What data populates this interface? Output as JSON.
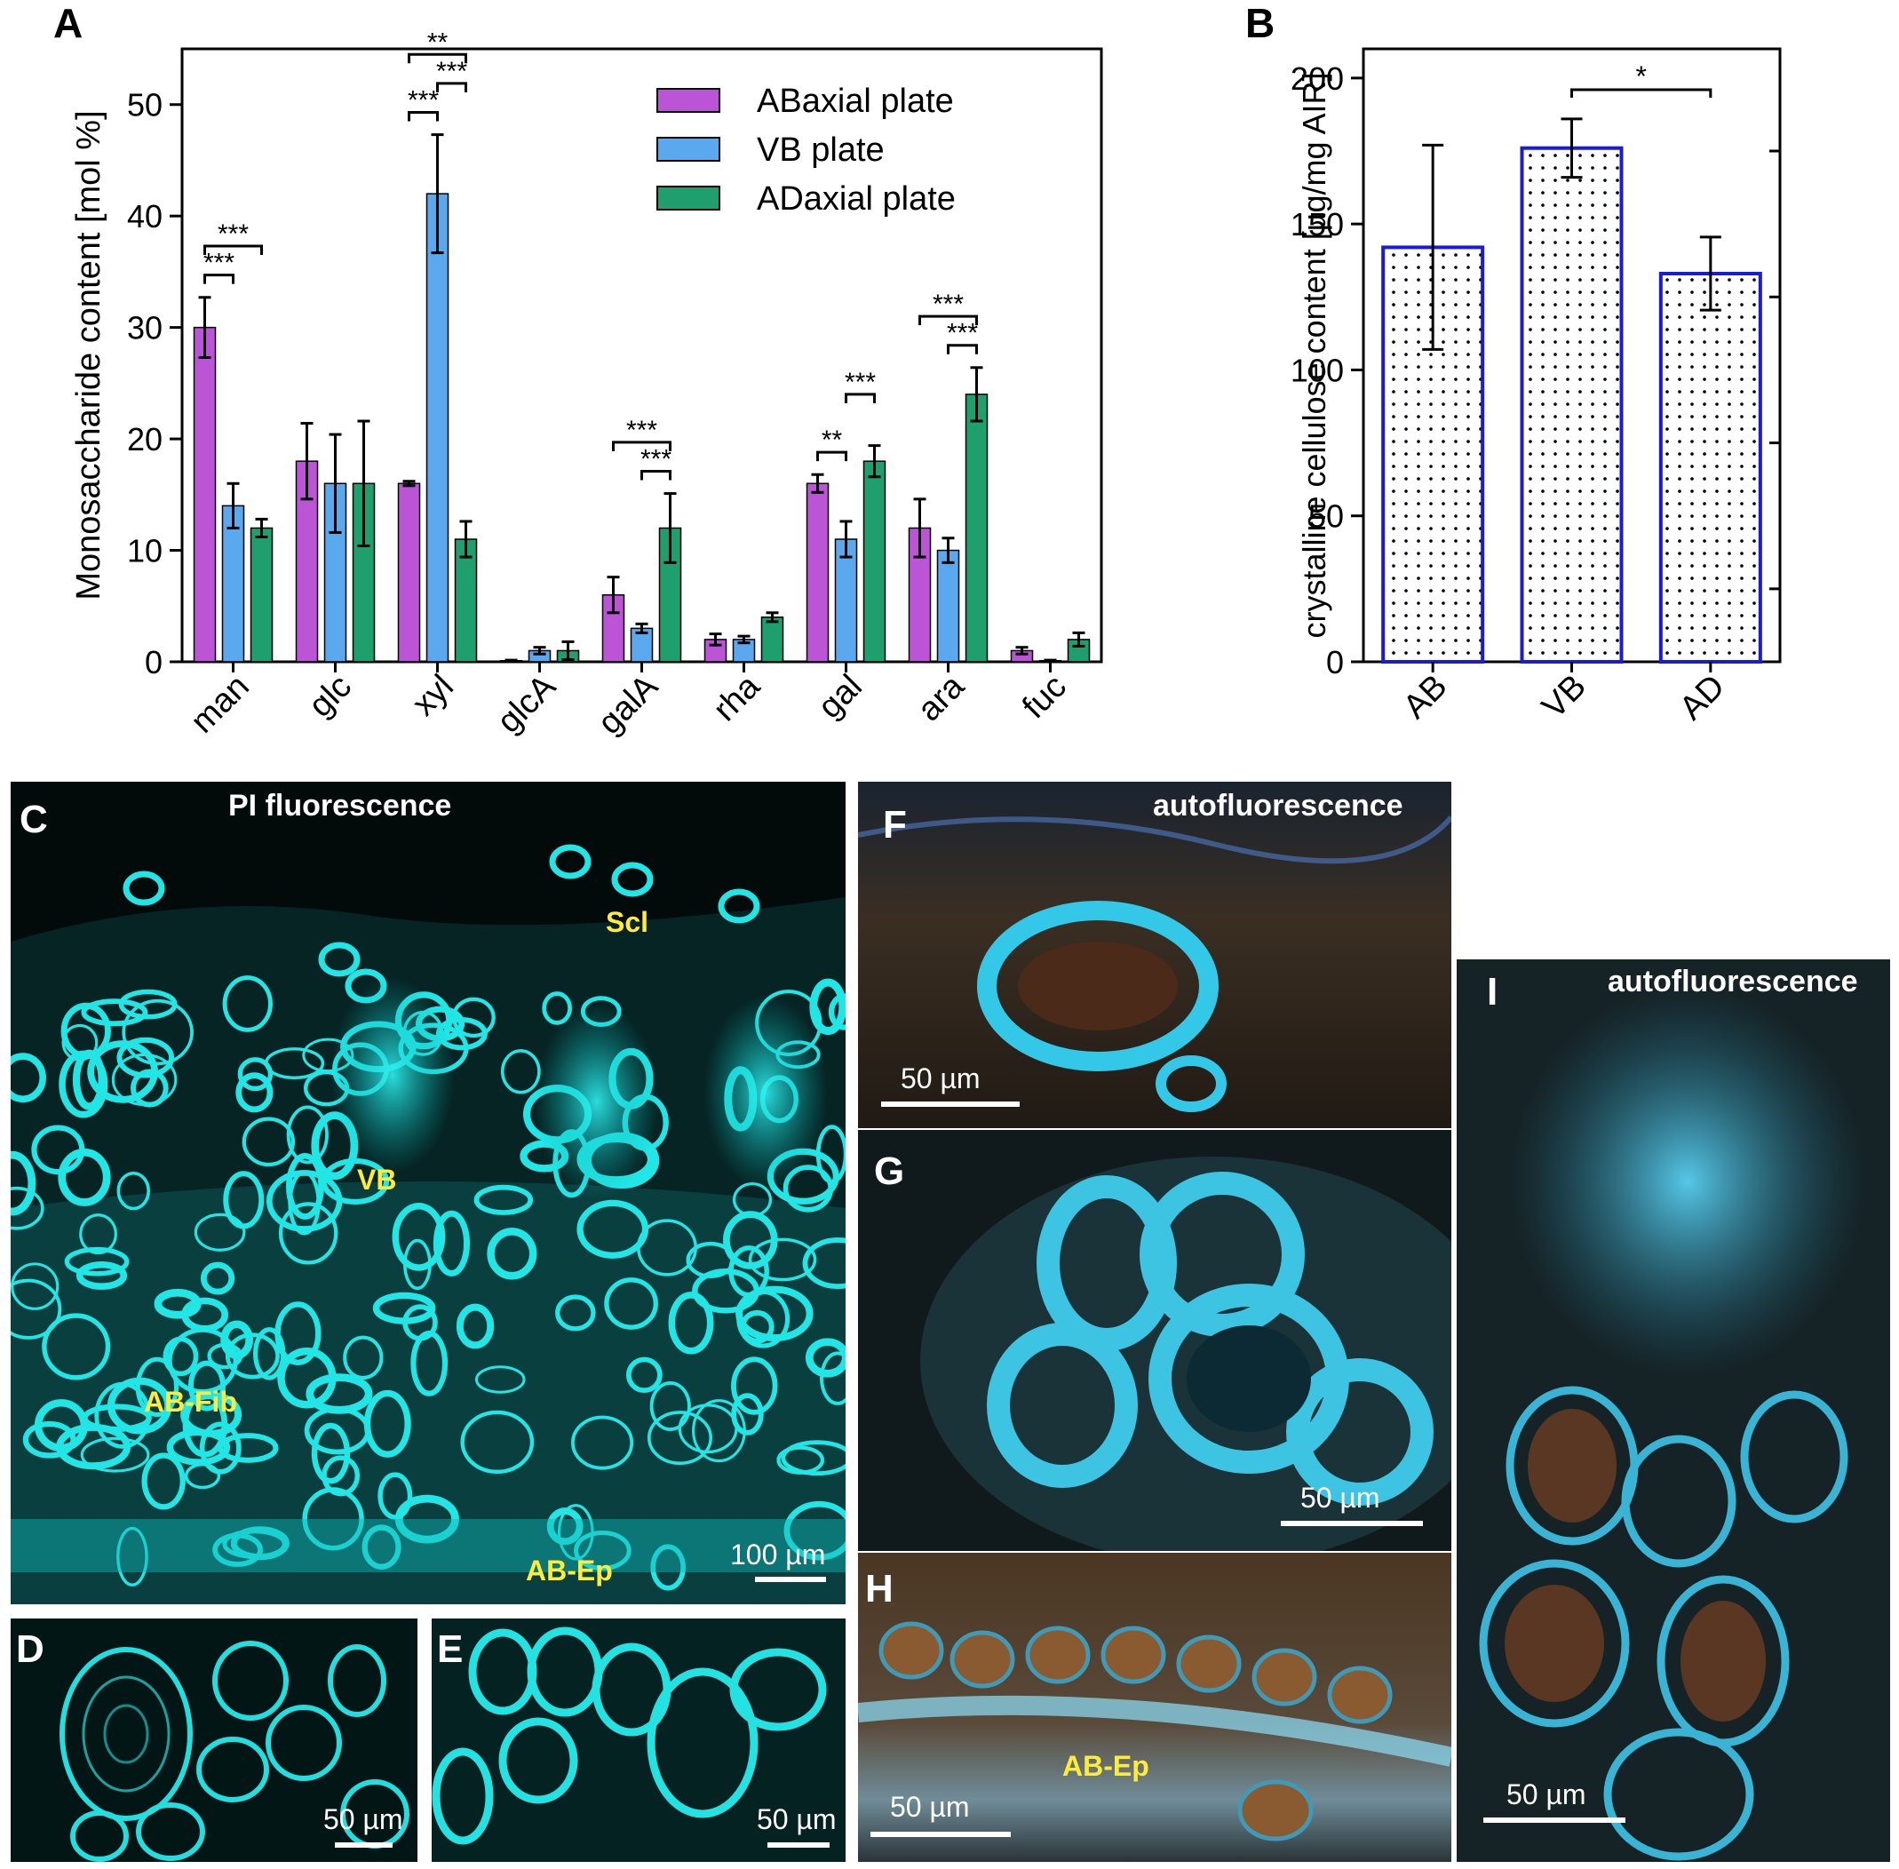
{
  "panels": {
    "A": "A",
    "B": "B",
    "C": "C",
    "D": "D",
    "E": "E",
    "F": "F",
    "G": "G",
    "H": "H",
    "I": "I"
  },
  "chart_data": [
    {
      "type": "bar",
      "panel": "A",
      "ylabel": "Monosaccharide content [mol %]",
      "ylim": [
        0,
        55
      ],
      "yticks": [
        "0",
        "10",
        "20",
        "30",
        "40",
        "50"
      ],
      "categories": [
        "man",
        "glc",
        "xyl",
        "glcA",
        "galA",
        "rha",
        "gal",
        "ara",
        "fuc"
      ],
      "series": [
        {
          "name": "ABaxial plate",
          "color": "#bb55d6",
          "values": [
            30,
            18,
            16,
            0.1,
            6,
            2,
            16,
            12,
            1
          ],
          "errors": [
            2.7,
            3.4,
            0.2,
            0.05,
            1.6,
            0.5,
            0.8,
            2.6,
            0.3
          ]
        },
        {
          "name": "VB plate",
          "color": "#5aa8ee",
          "values": [
            14,
            16,
            42,
            1,
            3,
            2,
            11,
            10,
            0.1
          ],
          "errors": [
            2,
            4.4,
            5.3,
            0.3,
            0.4,
            0.3,
            1.6,
            1.1,
            0.05
          ]
        },
        {
          "name": "ADaxial plate",
          "color": "#1f9e6e",
          "values": [
            12,
            16,
            11,
            1,
            12,
            4,
            18,
            24,
            2
          ],
          "errors": [
            0.8,
            5.6,
            1.6,
            0.8,
            3.1,
            0.4,
            1.4,
            2.4,
            0.6
          ]
        }
      ],
      "significance": [
        {
          "category": "man",
          "pair": [
            "ABaxial plate",
            "VB plate"
          ],
          "label": "***"
        },
        {
          "category": "man",
          "pair": [
            "ABaxial plate",
            "ADaxial plate"
          ],
          "label": "***"
        },
        {
          "category": "xyl",
          "pair": [
            "ABaxial plate",
            "VB plate"
          ],
          "label": "***"
        },
        {
          "category": "xyl",
          "pair": [
            "VB plate",
            "ADaxial plate"
          ],
          "label": "***"
        },
        {
          "category": "xyl",
          "pair": [
            "ABaxial plate",
            "ADaxial plate"
          ],
          "label": "**"
        },
        {
          "category": "galA",
          "pair": [
            "VB plate",
            "ADaxial plate"
          ],
          "label": "***"
        },
        {
          "category": "galA",
          "pair": [
            "ABaxial plate",
            "ADaxial plate"
          ],
          "label": "***"
        },
        {
          "category": "gal",
          "pair": [
            "ABaxial plate",
            "VB plate"
          ],
          "label": "**"
        },
        {
          "category": "gal",
          "pair": [
            "VB plate",
            "ADaxial plate"
          ],
          "label": "***"
        },
        {
          "category": "ara",
          "pair": [
            "VB plate",
            "ADaxial plate"
          ],
          "label": "***"
        },
        {
          "category": "ara",
          "pair": [
            "ABaxial plate",
            "ADaxial plate"
          ],
          "label": "***"
        }
      ],
      "legend": "top-right"
    },
    {
      "type": "bar",
      "panel": "B",
      "ylabel": "crystalline cellulose content [µg/mg AIR]",
      "ylim": [
        0,
        200
      ],
      "yticks": [
        "0",
        "50",
        "100",
        "150",
        "200"
      ],
      "categories": [
        "AB",
        "VB",
        "AD"
      ],
      "values": [
        142,
        176,
        133
      ],
      "errors": [
        35,
        10,
        12.5
      ],
      "bar_edge_color": "#1a1adb",
      "significance": [
        {
          "pair": [
            "VB",
            "AD"
          ],
          "label": "*"
        }
      ]
    }
  ],
  "micrographs": {
    "C": {
      "title": "PI fluorescence",
      "labels": [
        "Scl",
        "VB",
        "AB-Fib",
        "AB-Ep"
      ],
      "scale": "100 µm"
    },
    "D": {
      "scale": "50 µm"
    },
    "E": {
      "scale": "50 µm"
    },
    "F": {
      "title": "autofluorescence",
      "scale": "50 µm"
    },
    "G": {
      "scale": "50 µm"
    },
    "H": {
      "labels": [
        "AB-Ep"
      ],
      "scale": "50 µm"
    },
    "I": {
      "title": "autofluorescence",
      "scale": "50 µm"
    }
  }
}
